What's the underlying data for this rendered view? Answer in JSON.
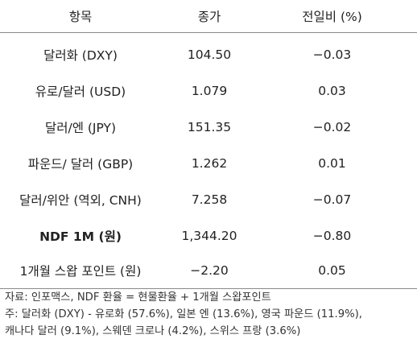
{
  "table": {
    "headers": [
      "항목",
      "종가",
      "전일비 (%)"
    ],
    "rows": [
      {
        "item": "달러화 (DXY)",
        "close": "104.50",
        "change": "−0.03",
        "bold": false
      },
      {
        "item": "유로/달러 (USD)",
        "close": "1.079",
        "change": "0.03",
        "bold": false
      },
      {
        "item": "달러/엔 (JPY)",
        "close": "151.35",
        "change": "−0.02",
        "bold": false
      },
      {
        "item": "파운드/ 달러 (GBP)",
        "close": "1.262",
        "change": "0.01",
        "bold": false
      },
      {
        "item": "달러/위안 (역외, CNH)",
        "close": "7.258",
        "change": "−0.07",
        "bold": false
      },
      {
        "item": "NDF 1M (원)",
        "close": "1,344.20",
        "change": "−0.80",
        "bold": true
      },
      {
        "item": "1개월 스왑 포인트 (원)",
        "close": "−2.20",
        "change": "0.05",
        "bold": false
      }
    ]
  },
  "notes": [
    "자료: 인포맥스, NDF 환율 = 현물환율 + 1개월 스왑포인트",
    "주: 달러화 (DXY) - 유로화 (57.6%), 일본 엔 (13.6%), 영국 파운드 (11.9%),",
    "캐나다 달러 (9.1%), 스웨덴 크로나 (4.2%), 스위스 프랑 (3.6%)"
  ]
}
